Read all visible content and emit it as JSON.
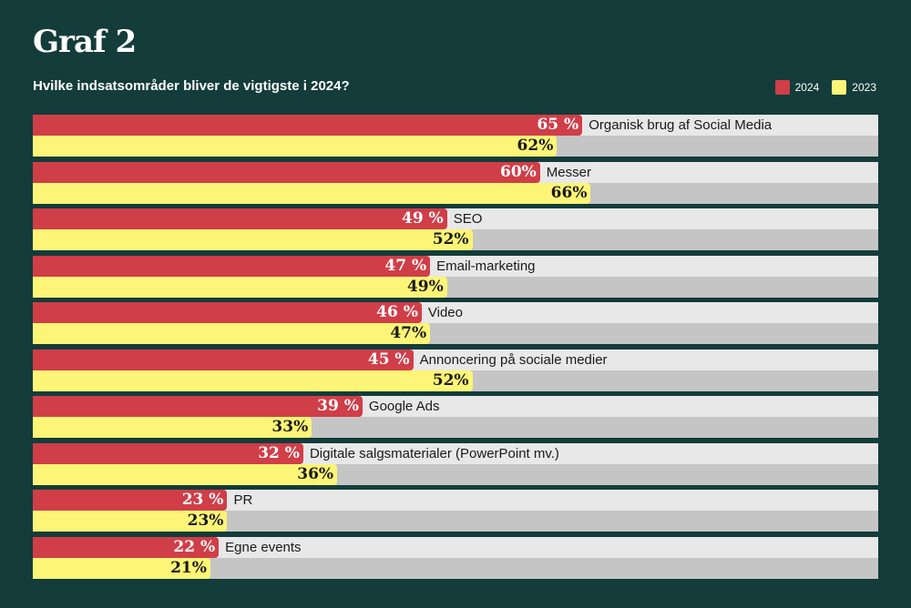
{
  "header": {
    "title": "Graf 2",
    "subtitle": "Hvilke indsatsområder bliver de vigtigste i 2024?"
  },
  "colors": {
    "y2024": "#d03e48",
    "y2023": "#fdf577"
  },
  "chart_data": {
    "type": "bar",
    "orientation": "horizontal",
    "title": "Hvilke indsatsområder bliver de vigtigste i 2024?",
    "legend_position": "top-right",
    "xlim": [
      0,
      100
    ],
    "categories": [
      "Organisk brug af Social Media",
      "Messer",
      "SEO",
      "Email-marketing",
      "Video",
      "Annoncering på sociale medier",
      "Google Ads",
      "Digitale salgsmaterialer (PowerPoint mv.)",
      "PR",
      "Egne events"
    ],
    "series": [
      {
        "name": "2024",
        "values": [
          65,
          60,
          49,
          47,
          46,
          45,
          39,
          32,
          23,
          22
        ],
        "labels": [
          "65 %",
          "60%",
          "49 %",
          "47 %",
          "46 %",
          "45 %",
          "39 %",
          "32 %",
          "23 %",
          "22 %"
        ]
      },
      {
        "name": "2023",
        "values": [
          62,
          66,
          52,
          49,
          47,
          52,
          33,
          36,
          23,
          21
        ],
        "labels": [
          "62%",
          "66%",
          "52%",
          "49%",
          "47%",
          "52%",
          "33%",
          "36%",
          "23%",
          "21%"
        ]
      }
    ]
  }
}
